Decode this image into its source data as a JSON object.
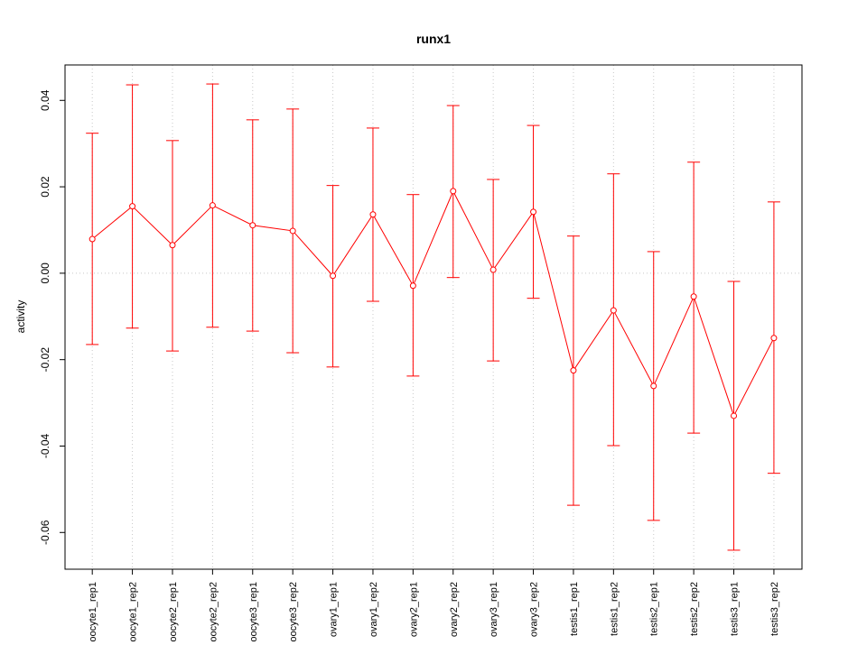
{
  "chart_data": {
    "type": "line",
    "title": "runx1",
    "xlabel": "",
    "ylabel": "activity",
    "categories": [
      "oocyte1_rep1",
      "oocyte1_rep2",
      "oocyte2_rep1",
      "oocyte2_rep2",
      "oocyte3_rep1",
      "oocyte3_rep2",
      "ovary1_rep1",
      "ovary1_rep2",
      "ovary2_rep1",
      "ovary2_rep2",
      "ovary3_rep1",
      "ovary3_rep2",
      "testis1_rep1",
      "testis1_rep2",
      "testis2_rep1",
      "testis2_rep2",
      "testis3_rep1",
      "testis3_rep2"
    ],
    "series": [
      {
        "name": "runx1",
        "color": "#ff0000",
        "values": [
          0.0079,
          0.0155,
          0.0065,
          0.0157,
          0.0111,
          0.0098,
          -0.0006,
          0.0136,
          -0.0029,
          0.019,
          0.0008,
          0.0142,
          -0.0225,
          -0.0086,
          -0.0261,
          -0.0054,
          -0.033,
          -0.015
        ],
        "upper": [
          0.0324,
          0.0436,
          0.0307,
          0.0438,
          0.0355,
          0.038,
          0.0203,
          0.0336,
          0.0182,
          0.0388,
          0.0217,
          0.0342,
          0.0086,
          0.023,
          0.005,
          0.0257,
          -0.0019,
          0.0165
        ],
        "lower": [
          -0.0165,
          -0.0127,
          -0.018,
          -0.0125,
          -0.0134,
          -0.0184,
          -0.0217,
          -0.0065,
          -0.0238,
          -0.001,
          -0.0203,
          -0.0058,
          -0.0537,
          -0.0399,
          -0.0572,
          -0.037,
          -0.0641,
          -0.0463
        ]
      }
    ],
    "yticks": [
      0.04,
      0.02,
      0.0,
      -0.02,
      -0.04,
      -0.06
    ],
    "ytick_labels": [
      "0.04",
      "0.02",
      "0.00",
      "-0.02",
      "-0.04",
      "-0.06"
    ],
    "ylim": [
      -0.0685,
      0.0482
    ],
    "xlim": [
      0.32,
      18.7
    ],
    "grid": true,
    "legend": "none"
  }
}
